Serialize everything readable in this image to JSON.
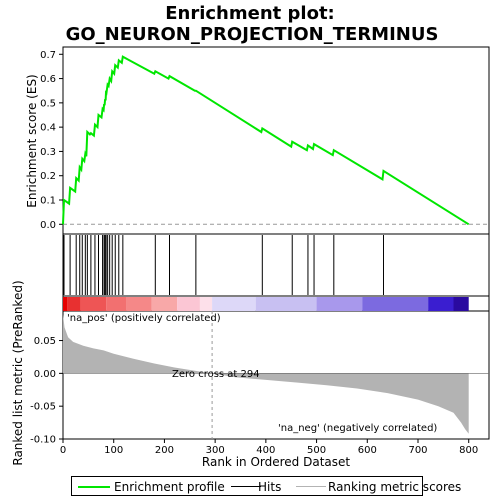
{
  "chart_data": {
    "type": "line",
    "title_line1": "Enrichment plot:",
    "title_line2": "GO_NEURON_PROJECTION_TERMINUS",
    "xlabel": "Rank in Ordered Dataset",
    "ylabel_top": "Enrichment score (ES)",
    "ylabel_bottom": "Ranked list metric (PreRanked)",
    "xlim": [
      0,
      840
    ],
    "es_ylim": [
      -0.04,
      0.73
    ],
    "metric_ylim": [
      -0.1,
      0.095
    ],
    "x_ticks": [
      0,
      100,
      200,
      300,
      400,
      500,
      600,
      700,
      800
    ],
    "es_ticks": [
      "0.0",
      "0.1",
      "0.2",
      "0.3",
      "0.4",
      "0.5",
      "0.6",
      "0.7"
    ],
    "metric_ticks": [
      "0.05",
      "0.00",
      "-0.05",
      "-0.10"
    ],
    "metric_tick_values": [
      0.05,
      0.0,
      -0.05,
      -0.1
    ],
    "es_tick_values": [
      0.0,
      0.1,
      0.2,
      0.3,
      0.4,
      0.5,
      0.6,
      0.7
    ],
    "n_genes": 800,
    "zero_cross_rank": 294,
    "zero_cross_label": "Zero cross at 294",
    "pos_label": "'na_pos' (positively correlated)",
    "neg_label": "'na_neg' (negatively correlated)",
    "hits": [
      2,
      14,
      26,
      33,
      38,
      44,
      48,
      55,
      63,
      70,
      78,
      81,
      83,
      85,
      88,
      92,
      97,
      103,
      110,
      118,
      182,
      210,
      262,
      393,
      452,
      483,
      495,
      534,
      632
    ],
    "es_curve": {
      "x": [
        0,
        2,
        12,
        14,
        24,
        26,
        31,
        33,
        36,
        38,
        42,
        44,
        46,
        48,
        53,
        55,
        61,
        63,
        68,
        70,
        76,
        78,
        80,
        81,
        82,
        83,
        84,
        85,
        86,
        88,
        90,
        92,
        95,
        97,
        101,
        103,
        108,
        110,
        116,
        118,
        180,
        182,
        208,
        210,
        260,
        262,
        391,
        393,
        450,
        452,
        481,
        483,
        493,
        495,
        532,
        534,
        630,
        632,
        800
      ],
      "y": [
        0.0,
        0.1,
        0.085,
        0.15,
        0.135,
        0.19,
        0.18,
        0.235,
        0.225,
        0.27,
        0.26,
        0.29,
        0.28,
        0.38,
        0.37,
        0.375,
        0.365,
        0.41,
        0.4,
        0.45,
        0.44,
        0.475,
        0.47,
        0.495,
        0.49,
        0.515,
        0.51,
        0.55,
        0.545,
        0.575,
        0.57,
        0.6,
        0.59,
        0.63,
        0.62,
        0.655,
        0.645,
        0.675,
        0.665,
        0.69,
        0.62,
        0.63,
        0.6,
        0.61,
        0.55,
        0.55,
        0.38,
        0.395,
        0.32,
        0.34,
        0.305,
        0.325,
        0.31,
        0.33,
        0.285,
        0.305,
        0.185,
        0.22,
        0.0
      ]
    },
    "metric_profile": {
      "x": [
        0,
        3,
        10,
        20,
        40,
        60,
        80,
        100,
        140,
        180,
        220,
        260,
        294,
        340,
        400,
        460,
        520,
        580,
        640,
        700,
        740,
        770,
        785,
        793,
        800
      ],
      "y": [
        0.09,
        0.07,
        0.055,
        0.048,
        0.042,
        0.038,
        0.035,
        0.03,
        0.022,
        0.015,
        0.009,
        0.004,
        0.0,
        -0.006,
        -0.01,
        -0.014,
        -0.018,
        -0.023,
        -0.03,
        -0.04,
        -0.05,
        -0.06,
        -0.075,
        -0.085,
        -0.092
      ]
    },
    "colors": {
      "es_line": "#00e600",
      "hits": "#000000",
      "metric_fill": "#b3b3b3",
      "neg_label": "#0000cc",
      "pos_label": "#cc0000",
      "zero_line": "#999999"
    },
    "heatmap_segments": [
      {
        "x0": 0,
        "x1": 8,
        "color": "#e60000"
      },
      {
        "x0": 8,
        "x1": 35,
        "color": "#e83030"
      },
      {
        "x0": 35,
        "x1": 85,
        "color": "#ee5555"
      },
      {
        "x0": 85,
        "x1": 125,
        "color": "#f27070"
      },
      {
        "x0": 125,
        "x1": 175,
        "color": "#f58888"
      },
      {
        "x0": 175,
        "x1": 225,
        "color": "#f8a8a8"
      },
      {
        "x0": 225,
        "x1": 270,
        "color": "#fbc6d4"
      },
      {
        "x0": 270,
        "x1": 294,
        "color": "#fde0ea"
      },
      {
        "x0": 294,
        "x1": 380,
        "color": "#ddd8f8"
      },
      {
        "x0": 380,
        "x1": 500,
        "color": "#c8c0f2"
      },
      {
        "x0": 500,
        "x1": 590,
        "color": "#a898ec"
      },
      {
        "x0": 590,
        "x1": 720,
        "color": "#7c6ae0"
      },
      {
        "x0": 720,
        "x1": 770,
        "color": "#3a1ed0"
      },
      {
        "x0": 770,
        "x1": 800,
        "color": "#2a0aa0"
      }
    ]
  },
  "legend": {
    "items": [
      "Enrichment profile",
      "Hits",
      "Ranking metric scores"
    ]
  }
}
